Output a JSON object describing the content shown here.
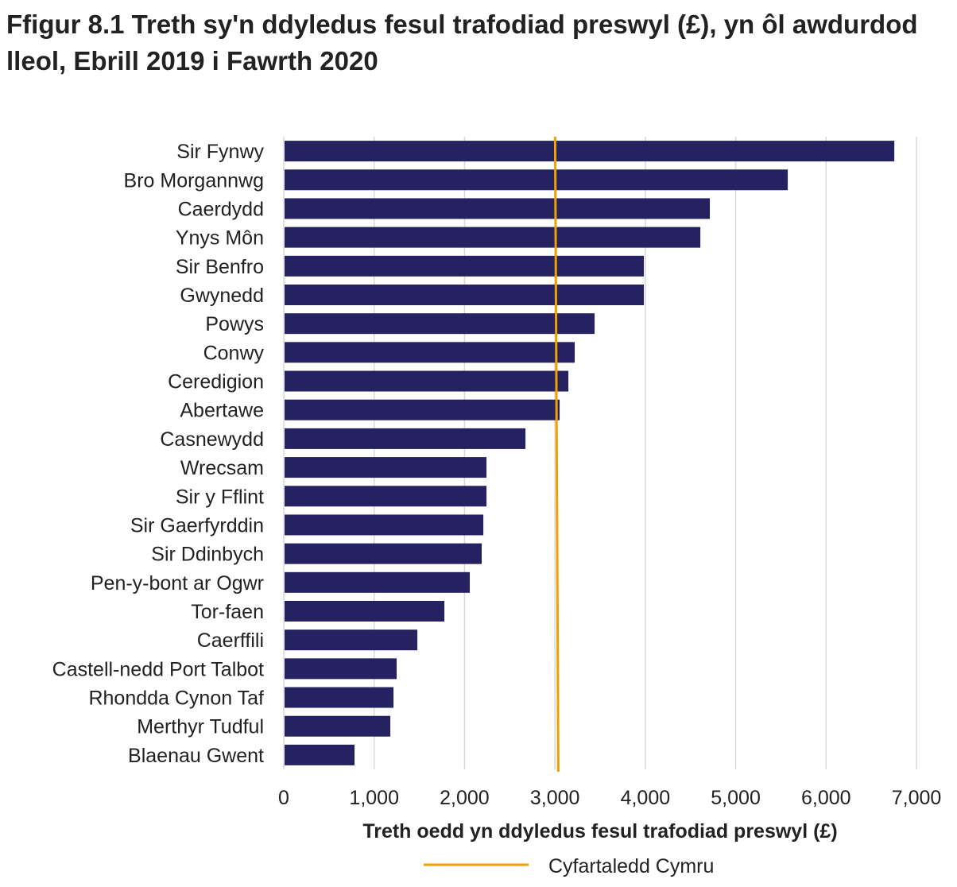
{
  "chart_data": {
    "type": "bar",
    "orientation": "horizontal",
    "title": "Ffigur 8.1 Treth sy'n ddyledus fesul trafodiad preswyl (£), yn ôl awdurdod lleol, Ebrill 2019 i Fawrth 2020",
    "xlabel": "Treth oedd yn ddyledus fesul trafodiad preswyl (£)",
    "ylabel": "",
    "xlim": [
      0,
      7000
    ],
    "xticks": [
      "0",
      "1,000",
      "2,000",
      "3,000",
      "4,000",
      "5,000",
      "6,000",
      "7,000"
    ],
    "grid": true,
    "categories": [
      "Sir Fynwy",
      "Bro Morgannwg",
      "Caerdydd",
      "Ynys Môn",
      "Sir Benfro",
      "Gwynedd",
      "Powys",
      "Conwy",
      "Ceredigion",
      "Abertawe",
      "Casnewydd",
      "Wrecsam",
      "Sir y Fflint",
      "Sir Gaerfyrddin",
      "Sir Ddinbych",
      "Pen-y-bont ar Ogwr",
      "Tor-faen",
      "Caerffili",
      "Castell-nedd Port Talbot",
      "Rhondda Cynon Taf",
      "Merthyr Tudful",
      "Blaenau Gwent"
    ],
    "values": [
      6755,
      5576,
      4714,
      4609,
      3984,
      3984,
      3439,
      3219,
      3149,
      3052,
      2674,
      2243,
      2243,
      2208,
      2190,
      2058,
      1777,
      1478,
      1249,
      1214,
      1179,
      783
    ],
    "reference_line": {
      "name": "Cyfartaledd Cymru",
      "value": 3020,
      "color": "#f0a000"
    },
    "bar_color": "#262261",
    "legend": "bottom"
  }
}
